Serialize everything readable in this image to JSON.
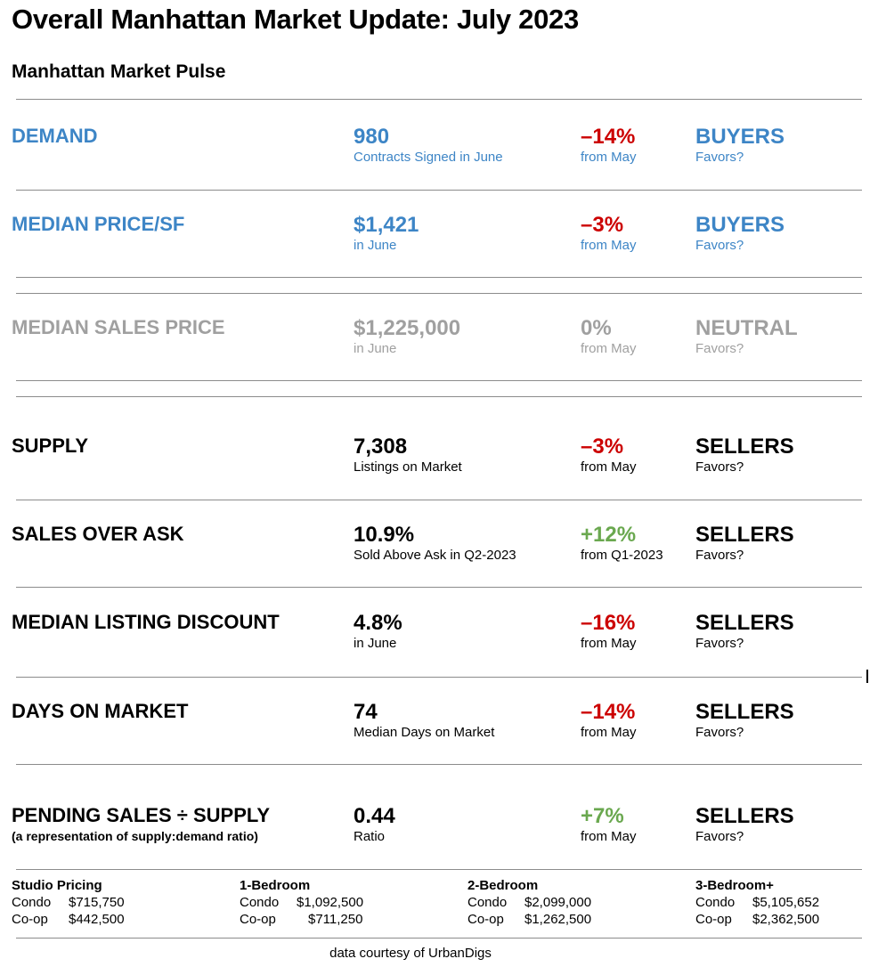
{
  "title": "Overall Manhattan Market Update: July 2023",
  "subtitle": "Manhattan Market Pulse",
  "colors": {
    "blue": "#3d85c6",
    "gray": "#a0a0a0",
    "red": "#cc0000",
    "green": "#6aa84f",
    "divider": "#8c8c8c"
  },
  "rows": [
    {
      "metric": "DEMAND",
      "metric_sub": "",
      "value": "980",
      "value_sub": "Contracts Signed in June",
      "change": "–14%",
      "change_sub": "from May",
      "favor": "BUYERS",
      "favor_sub": "Favors?"
    },
    {
      "metric": "MEDIAN PRICE/SF",
      "metric_sub": "",
      "value": "$1,421",
      "value_sub": " in June",
      "change": "–3%",
      "change_sub": "from May",
      "favor": "BUYERS",
      "favor_sub": "Favors?"
    },
    {
      "metric": "MEDIAN SALES PRICE",
      "metric_sub": "",
      "value": "$1,225,000",
      "value_sub": "in June",
      "change": "0%",
      "change_sub": "from May",
      "favor": "NEUTRAL",
      "favor_sub": "Favors?"
    },
    {
      "metric": "SUPPLY",
      "metric_sub": "",
      "value": "7,308",
      "value_sub": "Listings on Market",
      "change": "–3%",
      "change_sub": "from May",
      "favor": "SELLERS",
      "favor_sub": "Favors?"
    },
    {
      "metric": "SALES OVER ASK",
      "metric_sub": "",
      "value": "10.9%",
      "value_sub": "Sold Above Ask in Q2-2023",
      "change": "+12%",
      "change_sub": "from Q1-2023",
      "favor": "SELLERS",
      "favor_sub": "Favors?"
    },
    {
      "metric": "MEDIAN LISTING DISCOUNT",
      "metric_sub": "",
      "value": "4.8%",
      "value_sub": "in June",
      "change": "–16%",
      "change_sub": "from May",
      "favor": "SELLERS",
      "favor_sub": "Favors?"
    },
    {
      "metric": "DAYS ON MARKET",
      "metric_sub": "",
      "value": "74",
      "value_sub": "Median Days on Market",
      "change": "–14%",
      "change_sub": "from May",
      "favor": "SELLERS",
      "favor_sub": "Favors?"
    },
    {
      "metric": "PENDING SALES ÷ SUPPLY",
      "metric_sub": "(a representation of supply:demand ratio)",
      "value": "0.44",
      "value_sub": "Ratio",
      "change": "+7%",
      "change_sub": "from May",
      "favor": "SELLERS",
      "favor_sub": "Favors?"
    }
  ],
  "pricing": [
    {
      "heading": "Studio Pricing",
      "condo_label": "Condo",
      "condo": "$715,750",
      "coop_label": "Co-op",
      "coop": "$442,500"
    },
    {
      "heading": "1-Bedroom",
      "condo_label": "Condo",
      "condo": "$1,092,500",
      "coop_label": "Co-op",
      "coop": "$711,250"
    },
    {
      "heading": "2-Bedroom",
      "condo_label": "Condo",
      "condo": "$2,099,000",
      "coop_label": "Co-op",
      "coop": "$1,262,500"
    },
    {
      "heading": "3-Bedroom+",
      "condo_label": "Condo",
      "condo": "$5,105,652",
      "coop_label": "Co-op",
      "coop": "$2,362,500"
    }
  ],
  "credit": "data courtesy of UrbanDigs"
}
